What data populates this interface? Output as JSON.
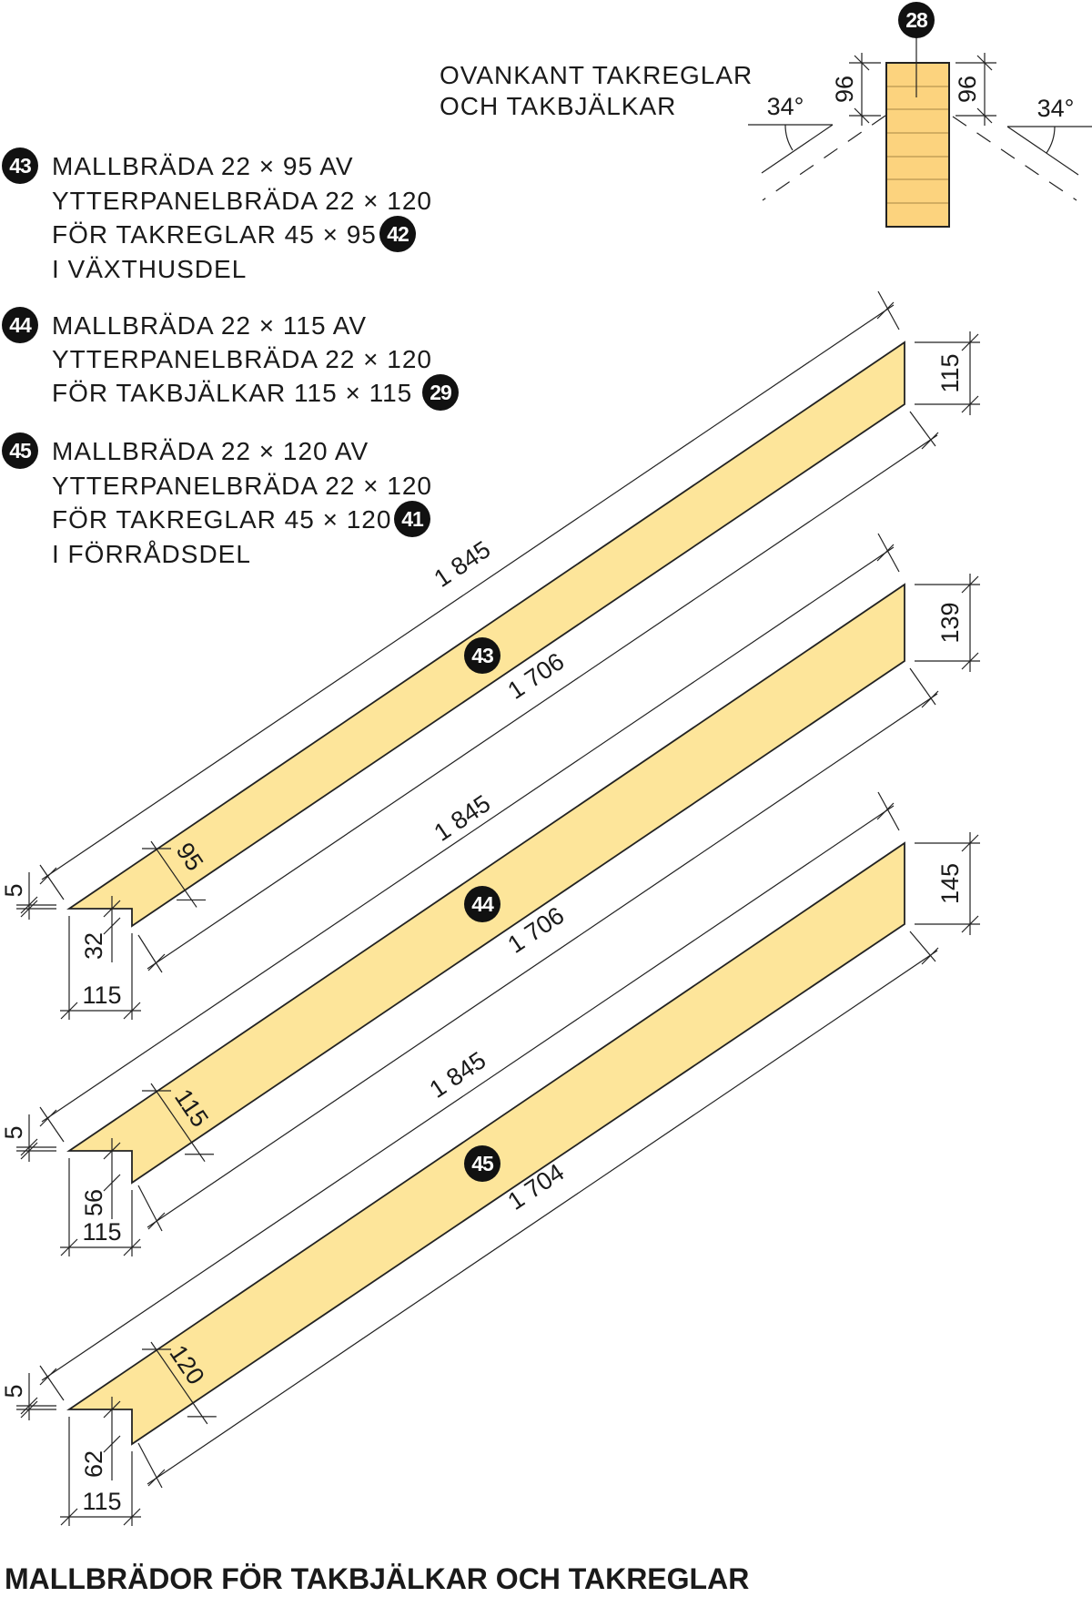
{
  "title": "MALLBRÄDOR FÖR TAKBJÄLKAR OCH TAKREGLAR",
  "top_note": [
    "OVANKANT TAKREGLAR",
    "OCH TAKBJÄLKAR"
  ],
  "ridge": {
    "badge": "28",
    "dim_left": "96",
    "dim_right": "96",
    "angle_left": "34°",
    "angle_right": "34°"
  },
  "legend": [
    {
      "badge": "43",
      "lines": [
        "MALLBRÄDA 22 × 95 AV",
        "YTTERPANELBRÄDA 22 × 120",
        "FÖR TAKREGLAR 45 × 95",
        "I VÄXTHUSDEL"
      ],
      "ref_badge": "42"
    },
    {
      "badge": "44",
      "lines": [
        "MALLBRÄDA 22 × 115 AV",
        "YTTERPANELBRÄDA 22 × 120",
        "FÖR TAKBJÄLKAR 115 × 115"
      ],
      "ref_badge": "29"
    },
    {
      "badge": "45",
      "lines": [
        "MALLBRÄDA 22 × 120 AV",
        "YTTERPANELBRÄDA 22 × 120",
        "FÖR TAKREGLAR 45 × 120",
        "I FÖRRÅDSDEL"
      ],
      "ref_badge": "41"
    }
  ],
  "boards": [
    {
      "badge": "43",
      "top_length": "1 845",
      "bottom_length": "1 706",
      "width": "95",
      "end_height": "115",
      "gap": "5",
      "notch_depth": "32",
      "notch_width": "115"
    },
    {
      "badge": "44",
      "top_length": "1 845",
      "bottom_length": "1 706",
      "width": "115",
      "end_height": "139",
      "gap": "5",
      "notch_depth": "56",
      "notch_width": "115"
    },
    {
      "badge": "45",
      "top_length": "1 845",
      "bottom_length": "1 704",
      "width": "120",
      "end_height": "145",
      "gap": "5",
      "notch_depth": "62",
      "notch_width": "115"
    }
  ],
  "colors": {
    "board": "#fde59a",
    "ridge_beam": "#fcd37e",
    "badge": "#111111"
  }
}
